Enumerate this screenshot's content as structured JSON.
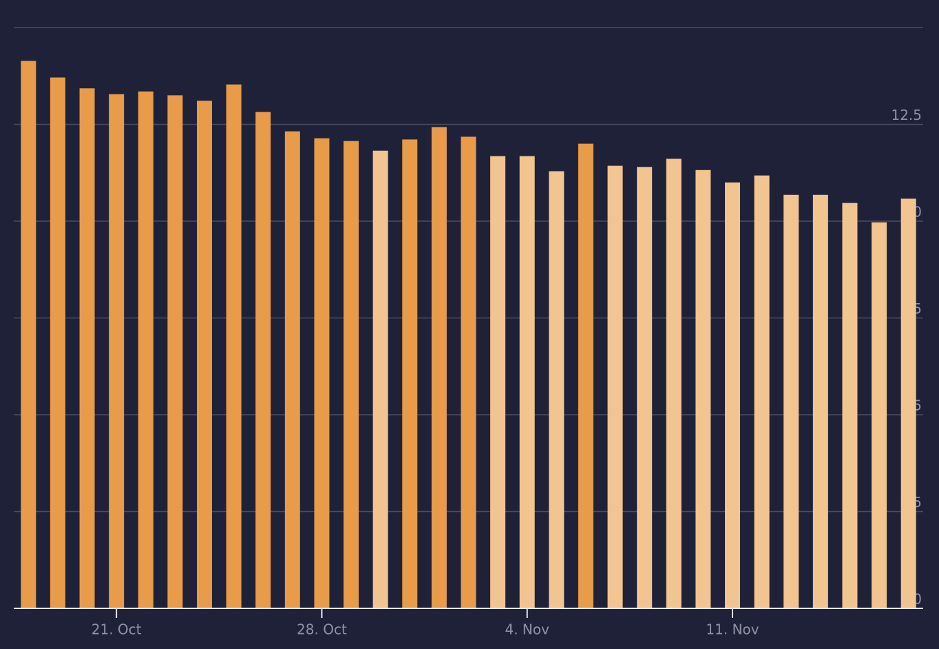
{
  "chart_data": {
    "type": "bar",
    "categories": [
      null,
      null,
      null,
      "21. Oct",
      null,
      null,
      null,
      null,
      null,
      null,
      "28. Oct",
      null,
      null,
      null,
      null,
      null,
      null,
      "4. Nov",
      null,
      null,
      null,
      null,
      null,
      null,
      "11. Nov",
      null,
      null,
      null,
      null,
      null,
      null
    ],
    "values": [
      14.14,
      13.71,
      13.43,
      13.28,
      13.35,
      13.25,
      13.11,
      13.53,
      12.82,
      12.32,
      12.14,
      12.07,
      11.82,
      12.11,
      12.43,
      12.18,
      11.68,
      11.68,
      11.29,
      12.0,
      11.43,
      11.4,
      11.61,
      11.32,
      11.0,
      11.18,
      10.68,
      10.68,
      10.47,
      9.97,
      10.58
    ],
    "colors": [
      "#e89b48",
      "#e89b48",
      "#e89b48",
      "#e89b48",
      "#e89b48",
      "#e89b48",
      "#e89b48",
      "#e89b48",
      "#e89b48",
      "#e89b48",
      "#e89b48",
      "#e89b48",
      "#f2c48f",
      "#e89b48",
      "#e89b48",
      "#e89b48",
      "#f2c48f",
      "#f2c48f",
      "#f2c48f",
      "#e89b48",
      "#f2c48f",
      "#f2c48f",
      "#f2c48f",
      "#f2c48f",
      "#f2c48f",
      "#f2c48f",
      "#f2c48f",
      "#f2c48f",
      "#f2c48f",
      "#f2c48f",
      "#f2c48f"
    ],
    "ylim": [
      0,
      15
    ],
    "yticks": [
      0,
      2.5,
      5,
      7.5,
      10,
      12.5
    ],
    "grid": true,
    "y_axis_side": "right"
  }
}
